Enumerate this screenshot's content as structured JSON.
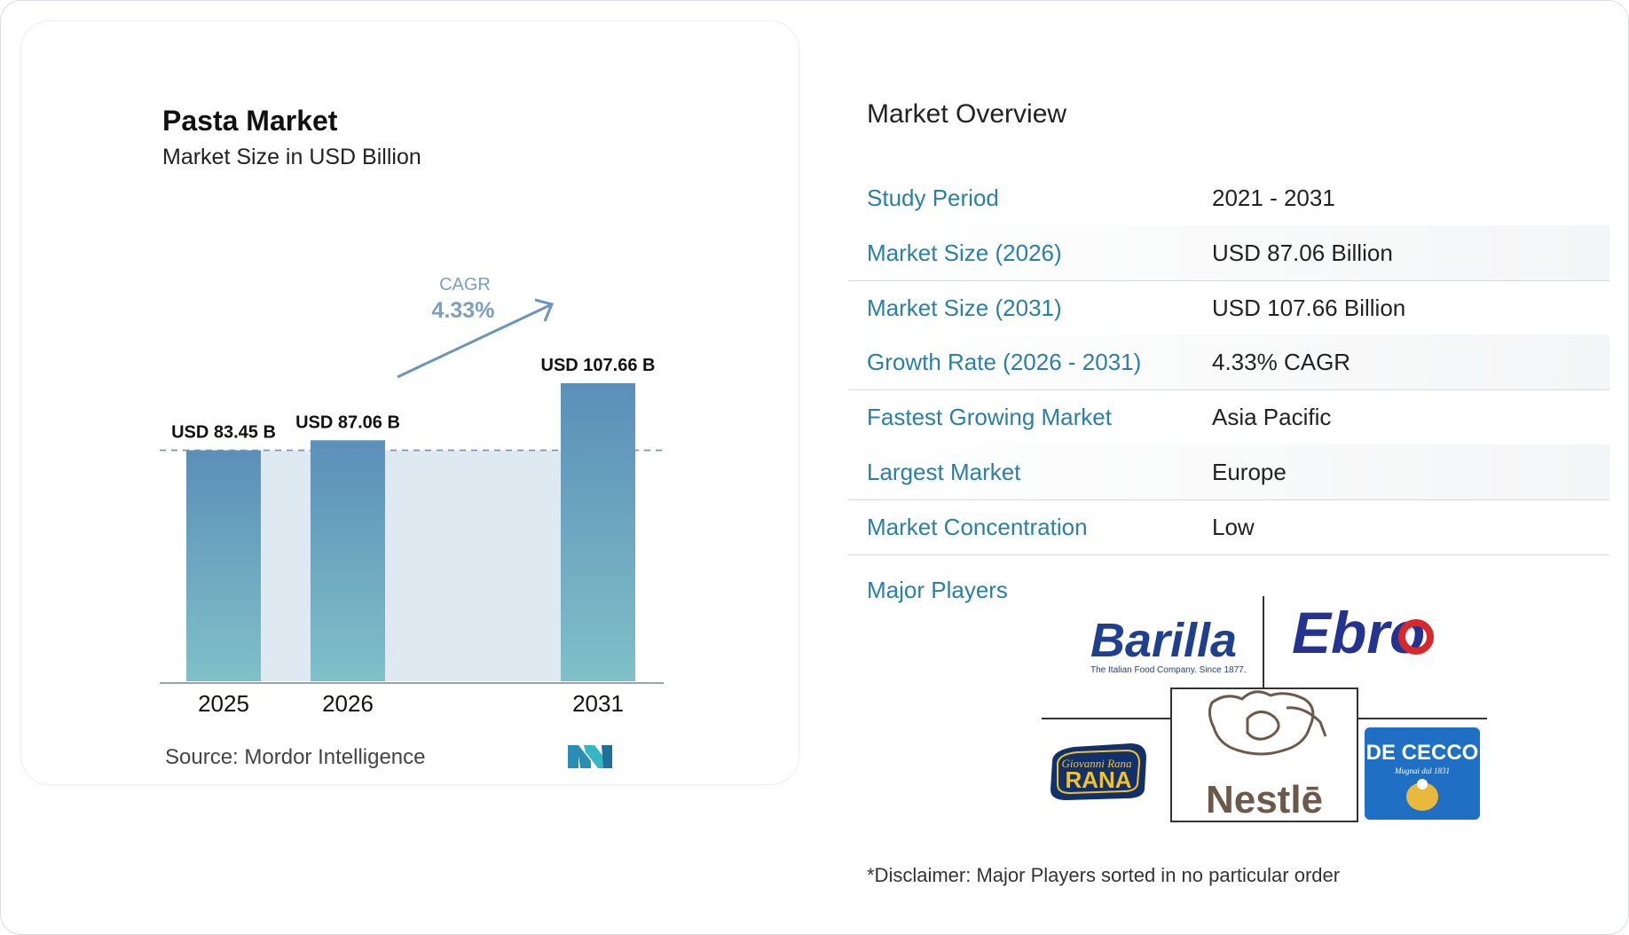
{
  "chart_data": {
    "type": "bar",
    "title": "Pasta Market",
    "subtitle": "Market Size in USD Billion",
    "categories": [
      "2025",
      "2026",
      "2031"
    ],
    "values": [
      83.45,
      87.06,
      107.66
    ],
    "value_labels": [
      "USD 83.45 B",
      "USD 87.06 B",
      "USD 107.66 B"
    ],
    "cagr_label": "CAGR",
    "cagr_value": "4.33%",
    "grid": false,
    "colors": {
      "bar_top": "#5b8fb8",
      "bar_bottom": "#7fc0c8",
      "band": "#dfe9f2",
      "arrow": "#6a95b9"
    }
  },
  "source": {
    "label": "Source:",
    "name": "Mordor Intelligence"
  },
  "overview": {
    "title": "Market Overview",
    "rows": [
      {
        "label": "Study Period",
        "value": "2021 - 2031"
      },
      {
        "label": "Market Size (2026)",
        "value": "USD 87.06 Billion"
      },
      {
        "label": "Market Size (2031)",
        "value": "USD 107.66 Billion"
      },
      {
        "label": "Growth Rate (2026 - 2031)",
        "value": "4.33% CAGR"
      },
      {
        "label": "Fastest Growing Market",
        "value": "Asia Pacific"
      },
      {
        "label": "Largest Market",
        "value": "Europe"
      },
      {
        "label": "Market Concentration",
        "value": "Low"
      }
    ],
    "players_label": "Major Players",
    "players": {
      "barilla": "Barilla",
      "barilla_tagline": "The Italian Food Company. Since 1877.",
      "ebro": "Ebro",
      "rana_script": "Giovanni Rana",
      "rana": "RANA",
      "nestle": "Nestlē",
      "dececco": "DE CECCO",
      "dececco_tagline": "Mugnai dal 1831"
    },
    "disclaimer": "*Disclaimer: Major Players sorted in no particular order"
  }
}
